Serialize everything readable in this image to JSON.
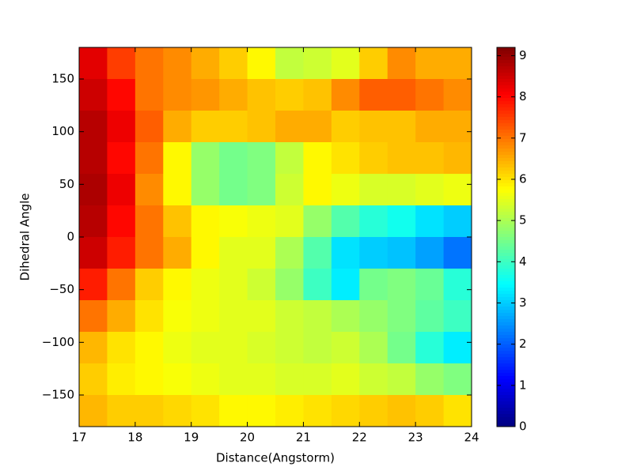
{
  "chart_data": {
    "type": "heatmap",
    "xlabel": "Distance(Angstorm)",
    "ylabel": "Dihedral Angle",
    "xlim": [
      17,
      24
    ],
    "xticks": [
      17,
      18,
      19,
      20,
      21,
      22,
      23,
      24
    ],
    "ylim": [
      -180,
      180
    ],
    "yticks": [
      {
        "value": -150,
        "label": "−150"
      },
      {
        "value": -100,
        "label": "−100"
      },
      {
        "value": -50,
        "label": "−50"
      },
      0,
      50,
      100,
      150
    ],
    "zlim": [
      0,
      9.2
    ],
    "zticks": [
      0,
      1,
      2,
      3,
      4,
      5,
      6,
      7,
      8,
      9
    ],
    "colormap": "jet",
    "x": [
      17.25,
      17.75,
      18.25,
      18.75,
      19.25,
      19.75,
      20.25,
      20.75,
      21.25,
      21.75,
      22.25,
      22.75,
      23.25,
      23.75
    ],
    "y": [
      165,
      135,
      105,
      75,
      45,
      15,
      -15,
      -45,
      -75,
      -105,
      -135,
      -165
    ],
    "z": [
      [
        8.3,
        7.5,
        7.0,
        6.8,
        6.5,
        6.2,
        5.8,
        5.2,
        5.3,
        5.5,
        6.2,
        6.8,
        6.5,
        6.5
      ],
      [
        8.5,
        8.0,
        7.0,
        6.8,
        6.7,
        6.5,
        6.3,
        6.2,
        6.3,
        6.8,
        7.2,
        7.2,
        7.0,
        6.8
      ],
      [
        8.7,
        8.2,
        7.2,
        6.5,
        6.2,
        6.2,
        6.3,
        6.5,
        6.5,
        6.2,
        6.3,
        6.3,
        6.5,
        6.5
      ],
      [
        8.7,
        8.0,
        7.0,
        5.8,
        4.8,
        4.5,
        4.6,
        5.2,
        5.8,
        6.0,
        6.2,
        6.3,
        6.3,
        6.4
      ],
      [
        8.8,
        8.2,
        6.8,
        5.8,
        4.8,
        4.5,
        4.6,
        5.3,
        5.8,
        5.6,
        5.4,
        5.4,
        5.5,
        5.6
      ],
      [
        8.7,
        8.0,
        7.0,
        6.3,
        5.8,
        5.7,
        5.6,
        5.5,
        4.8,
        4.2,
        3.8,
        3.6,
        3.2,
        3.0
      ],
      [
        8.5,
        7.8,
        7.0,
        6.5,
        5.8,
        5.5,
        5.5,
        5.0,
        4.2,
        3.2,
        3.0,
        2.9,
        2.6,
        2.2
      ],
      [
        7.8,
        7.0,
        6.2,
        5.8,
        5.6,
        5.5,
        5.3,
        4.8,
        4.0,
        3.3,
        4.5,
        4.6,
        4.4,
        3.8
      ],
      [
        7.0,
        6.5,
        6.0,
        5.7,
        5.6,
        5.5,
        5.5,
        5.3,
        5.2,
        5.0,
        4.8,
        4.6,
        4.3,
        4.0
      ],
      [
        6.4,
        6.0,
        5.8,
        5.6,
        5.5,
        5.5,
        5.4,
        5.3,
        5.2,
        5.3,
        5.0,
        4.5,
        3.8,
        3.3
      ],
      [
        6.2,
        5.9,
        5.8,
        5.7,
        5.6,
        5.5,
        5.5,
        5.4,
        5.4,
        5.5,
        5.3,
        5.2,
        4.8,
        4.6
      ],
      [
        6.4,
        6.2,
        6.2,
        6.1,
        6.0,
        5.8,
        5.8,
        5.9,
        6.0,
        6.1,
        6.2,
        6.3,
        6.2,
        6.0
      ]
    ]
  }
}
